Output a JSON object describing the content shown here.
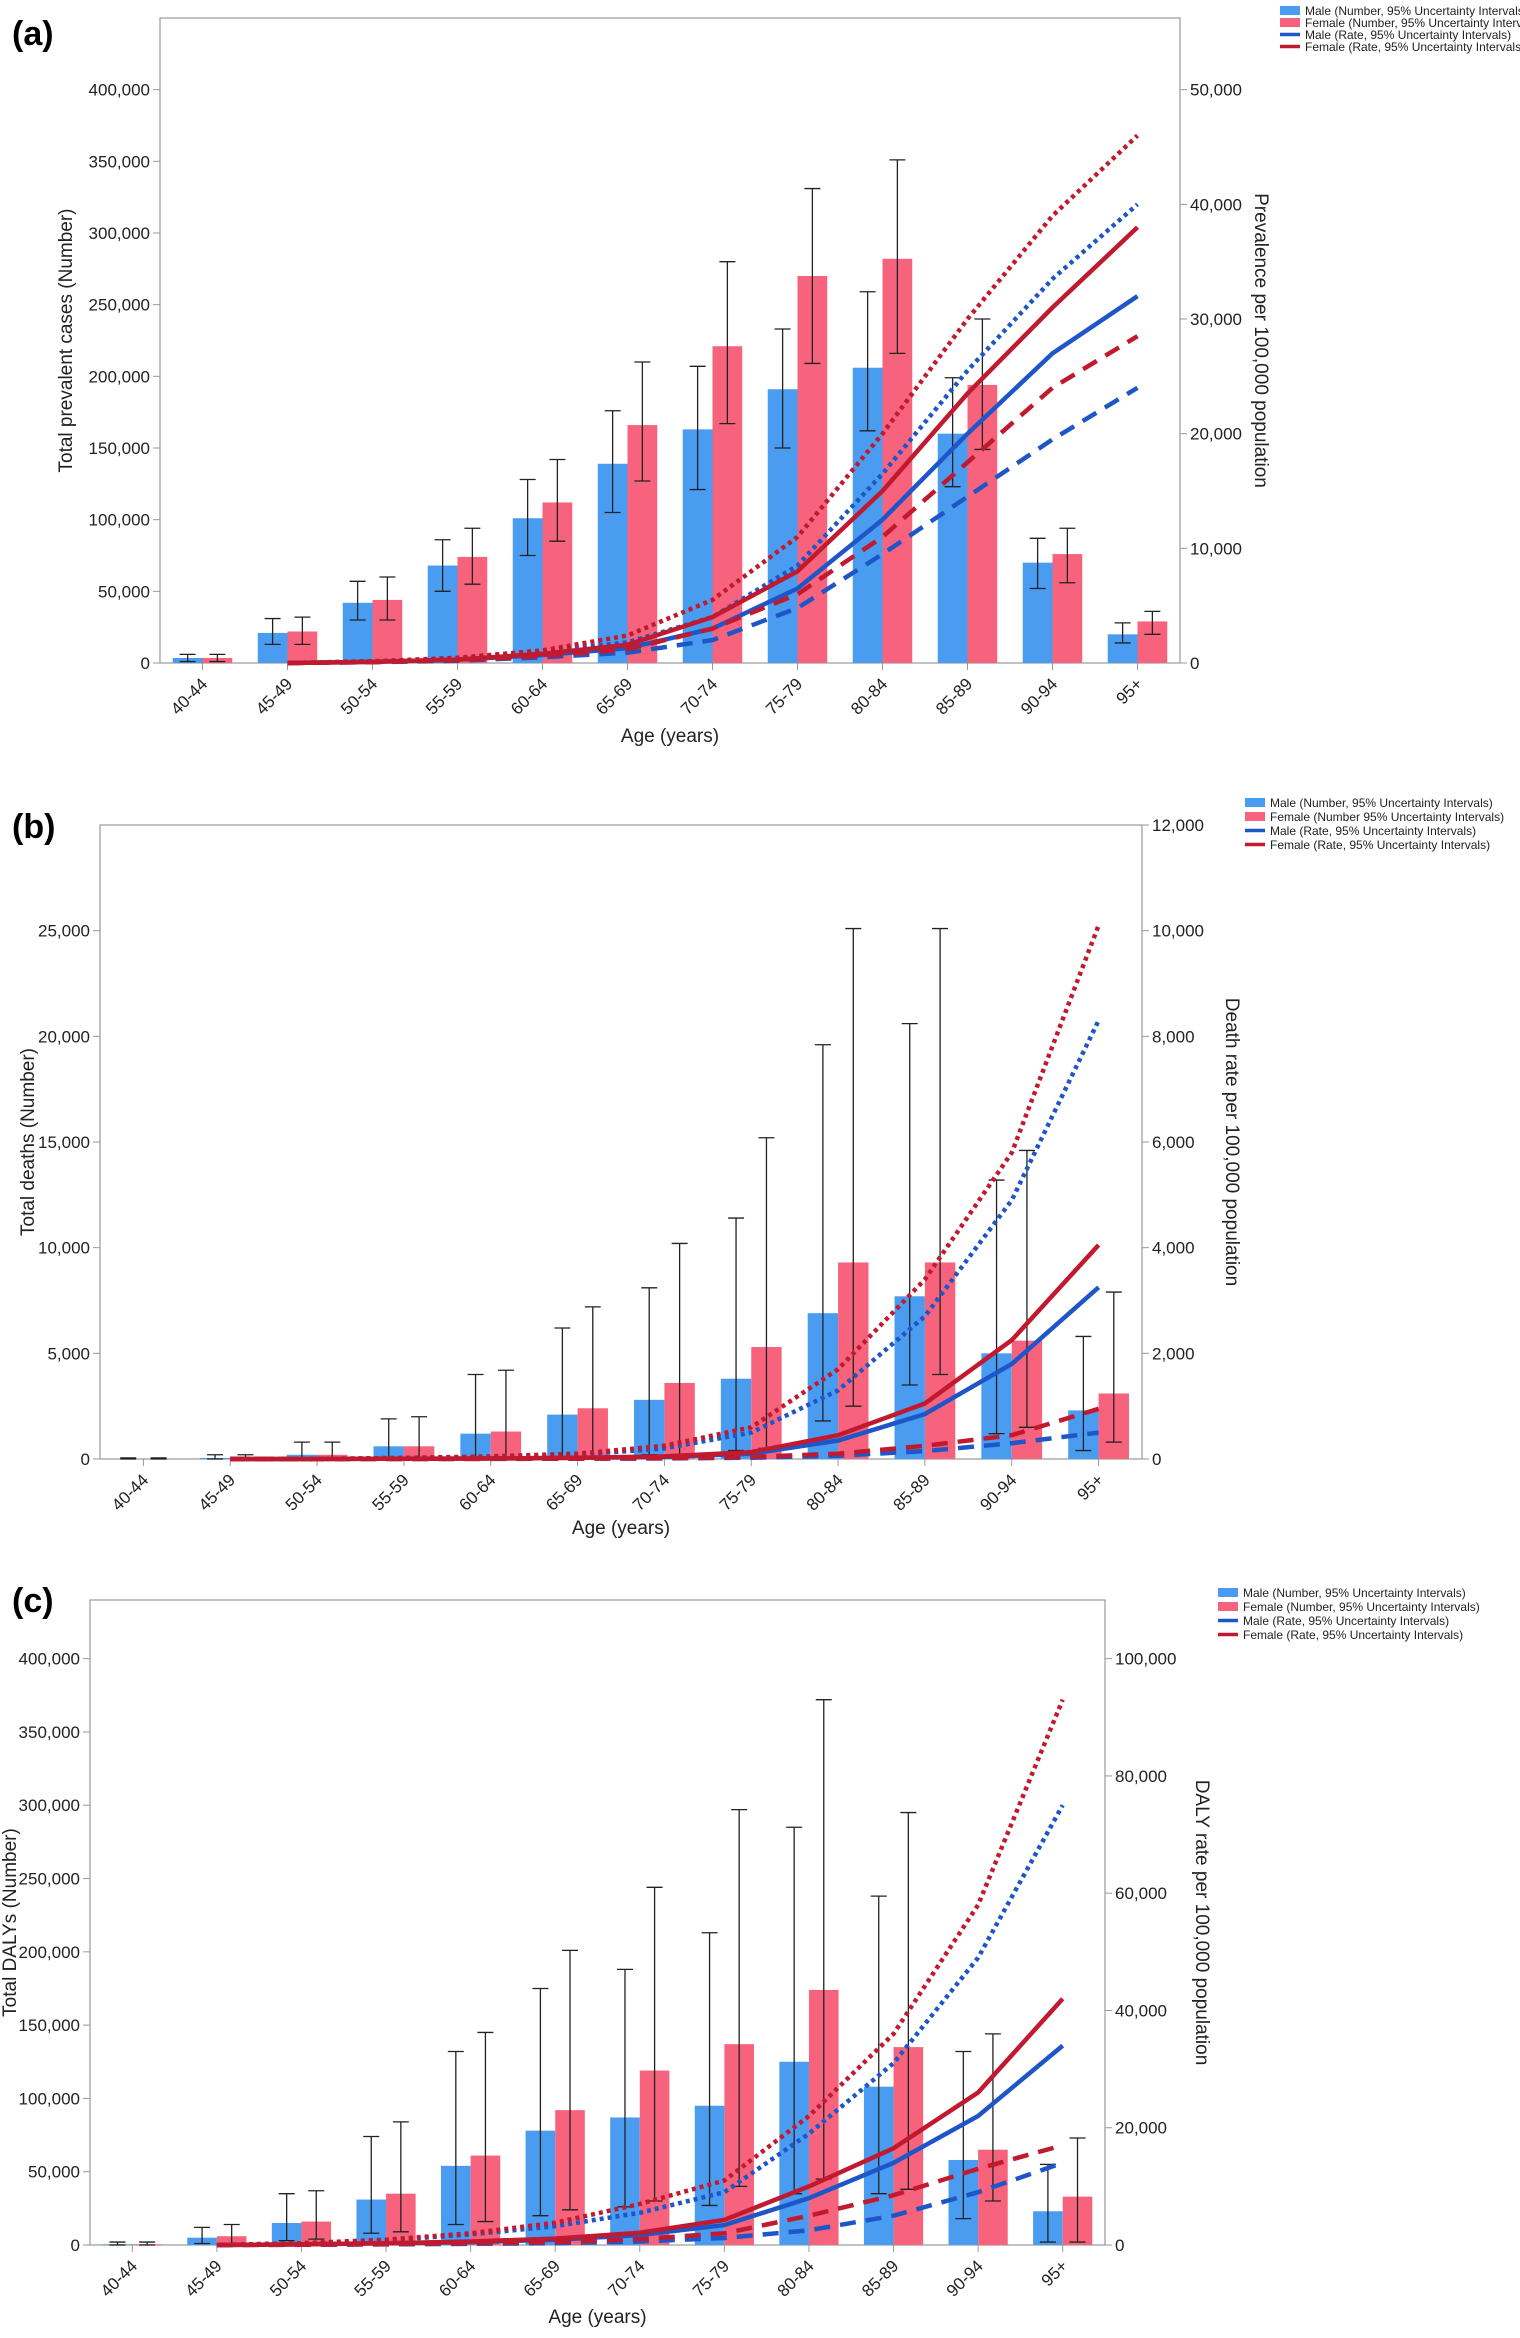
{
  "colors": {
    "male_bar": "#4a9cf0",
    "female_bar": "#f7637c",
    "male_line": "#1e56c8",
    "female_line": "#c11a2e",
    "axis": "#999999",
    "error_bar": "#222222"
  },
  "chart_data": [
    {
      "panel": "(a)",
      "type": "bar+line",
      "categories": [
        "40-44",
        "45-49",
        "50-54",
        "55-59",
        "60-64",
        "65-69",
        "70-74",
        "75-79",
        "80-84",
        "85-89",
        "90-94",
        "95+"
      ],
      "xlabel": "Age (years)",
      "ylabel": "Total prevalent cases (Number)",
      "y2label": "Prevalence per 100,000 population",
      "ylim": [
        0,
        450000
      ],
      "y2lim": [
        0,
        56250
      ],
      "yticks": [
        0,
        50000,
        100000,
        150000,
        200000,
        250000,
        300000,
        350000,
        400000
      ],
      "yticklabels": [
        "0",
        "50,000",
        "100,000",
        "150,000",
        "200,000",
        "250,000",
        "300,000",
        "350,000",
        "400,000"
      ],
      "y2ticks": [
        0,
        10000,
        20000,
        30000,
        40000,
        50000
      ],
      "y2ticklabels": [
        "0",
        "10,000",
        "20,000",
        "30,000",
        "40,000",
        "50,000"
      ],
      "legend": [
        "Male (Number, 95% Uncertainty Intervals)",
        "Female (Number, 95% Uncertainty Intervals)",
        "Male (Rate, 95% Uncertainty Intervals)",
        "Female (Rate, 95% Uncertainty Intervals)"
      ],
      "bars": {
        "male": {
          "values": [
            3500,
            21000,
            42000,
            68000,
            101000,
            139000,
            163000,
            191000,
            206000,
            160000,
            70000,
            20000
          ],
          "lower": [
            1000,
            13000,
            30000,
            50000,
            75000,
            105000,
            121000,
            150000,
            162000,
            123000,
            52000,
            14000
          ],
          "upper": [
            6000,
            31000,
            57000,
            86000,
            128000,
            176000,
            207000,
            233000,
            259000,
            199000,
            87000,
            28000
          ]
        },
        "female": {
          "values": [
            3500,
            22000,
            44000,
            74000,
            112000,
            166000,
            221000,
            270000,
            282000,
            194000,
            76000,
            29000
          ],
          "lower": [
            1000,
            13000,
            30000,
            55000,
            85000,
            127000,
            167000,
            209000,
            216000,
            149000,
            56000,
            20000
          ],
          "upper": [
            6000,
            32000,
            60000,
            94000,
            142000,
            210000,
            280000,
            331000,
            351000,
            240000,
            94000,
            36000
          ]
        }
      },
      "rate_lines": {
        "male": {
          "values": [
            0,
            0,
            100,
            300,
            700,
            1300,
            3000,
            6500,
            12500,
            20000,
            27000,
            32000
          ],
          "lower": [
            0,
            0,
            70,
            200,
            500,
            900,
            2000,
            4800,
            9500,
            14500,
            19500,
            24000
          ],
          "upper": [
            0,
            0,
            150,
            400,
            1000,
            1800,
            4000,
            8500,
            16500,
            25500,
            33500,
            40000
          ]
        },
        "female": {
          "values": [
            0,
            0,
            100,
            300,
            800,
            1600,
            4000,
            8000,
            15000,
            23500,
            31000,
            38000
          ],
          "lower": [
            0,
            0,
            80,
            250,
            600,
            1200,
            3000,
            6000,
            11000,
            17500,
            24000,
            28500
          ],
          "upper": [
            0,
            0,
            150,
            450,
            1100,
            2400,
            5500,
            11000,
            20000,
            30000,
            39000,
            46000
          ]
        }
      }
    },
    {
      "panel": "(b)",
      "type": "bar+line",
      "categories": [
        "40-44",
        "45-49",
        "50-54",
        "55-59",
        "60-64",
        "65-69",
        "70-74",
        "75-79",
        "80-84",
        "85-89",
        "90-94",
        "95+"
      ],
      "xlabel": "Age (years)",
      "ylabel": "Total deaths (Number)",
      "y2label": "Death rate per 100,000 population",
      "ylim": [
        0,
        30000
      ],
      "y2lim": [
        0,
        12000
      ],
      "yticks": [
        0,
        5000,
        10000,
        15000,
        20000,
        25000
      ],
      "yticklabels": [
        "0",
        "5,000",
        "10,000",
        "15,000",
        "20,000",
        "25,000"
      ],
      "y2ticks": [
        0,
        2000,
        4000,
        6000,
        8000,
        10000,
        12000
      ],
      "y2ticklabels": [
        "0",
        "2,000",
        "4,000",
        "6,000",
        "8,000",
        "10,000",
        "12,000"
      ],
      "legend": [
        "Male (Number, 95% Uncertainty Intervals)",
        "Female (Number 95% Uncertainty Intervals)",
        "Male (Rate, 95% Uncertainty Intervals)",
        "Female (Rate, 95% Uncertainty Intervals)"
      ],
      "bars": {
        "male": {
          "values": [
            10,
            50,
            200,
            600,
            1200,
            2100,
            2800,
            3800,
            6900,
            7700,
            5000,
            2300
          ],
          "lower": [
            0,
            0,
            0,
            0,
            50,
            100,
            200,
            400,
            1800,
            3500,
            1200,
            400
          ],
          "upper": [
            50,
            200,
            800,
            1900,
            4000,
            6200,
            8100,
            11400,
            19600,
            20600,
            13200,
            5800
          ]
        },
        "female": {
          "values": [
            10,
            50,
            200,
            600,
            1300,
            2400,
            3600,
            5300,
            9300,
            9300,
            5600,
            3100
          ],
          "lower": [
            0,
            0,
            0,
            0,
            50,
            100,
            200,
            500,
            2500,
            4000,
            1500,
            800
          ],
          "upper": [
            50,
            200,
            800,
            2000,
            4200,
            7200,
            10200,
            15200,
            25100,
            25100,
            14600,
            7900
          ]
        }
      },
      "rate_lines": {
        "male": {
          "values": [
            0,
            0,
            0,
            5,
            10,
            20,
            40,
            100,
            350,
            850,
            1800,
            3250
          ],
          "lower": [
            0,
            0,
            0,
            0,
            2,
            5,
            10,
            25,
            60,
            150,
            300,
            500
          ],
          "upper": [
            0,
            0,
            0,
            20,
            40,
            80,
            200,
            500,
            1300,
            2700,
            4900,
            8300
          ]
        },
        "female": {
          "values": [
            0,
            0,
            0,
            5,
            10,
            25,
            50,
            130,
            450,
            1050,
            2250,
            4050
          ],
          "lower": [
            0,
            0,
            0,
            0,
            3,
            8,
            15,
            40,
            100,
            250,
            450,
            950
          ],
          "upper": [
            0,
            0,
            0,
            20,
            50,
            100,
            250,
            600,
            1700,
            3400,
            5800,
            10100
          ]
        }
      }
    },
    {
      "panel": "(c)",
      "type": "bar+line",
      "categories": [
        "40-44",
        "45-49",
        "50-54",
        "55-59",
        "60-64",
        "65-69",
        "70-74",
        "75-79",
        "80-84",
        "85-89",
        "90-94",
        "95+"
      ],
      "xlabel": "Age (years)",
      "ylabel": "Total DALYs (Number)",
      "y2label": "DALY rate per 100,000 population",
      "ylim": [
        0,
        440000
      ],
      "y2lim": [
        0,
        110000
      ],
      "yticks": [
        0,
        50000,
        100000,
        150000,
        200000,
        250000,
        300000,
        350000,
        400000
      ],
      "yticklabels": [
        "0",
        "50,000",
        "100,000",
        "150,000",
        "200,000",
        "250,000",
        "300,000",
        "350,000",
        "400,000"
      ],
      "y2ticks": [
        0,
        20000,
        40000,
        60000,
        80000,
        100000
      ],
      "y2ticklabels": [
        "0",
        "20,000",
        "40,000",
        "60,000",
        "80,000",
        "100,000"
      ],
      "legend": [
        "Male (Number, 95% Uncertainty Intervals)",
        "Female (Number, 95% Uncertainty Intervals)",
        "Male (Rate, 95% Uncertainty Intervals)",
        "Female (Rate, 95% Uncertainty Intervals)"
      ],
      "bars": {
        "male": {
          "values": [
            500,
            5000,
            15000,
            31000,
            54000,
            78000,
            87000,
            95000,
            125000,
            108000,
            58000,
            23000
          ],
          "lower": [
            0,
            1000,
            3000,
            8000,
            14000,
            20000,
            26000,
            27000,
            35000,
            35000,
            18000,
            2000
          ],
          "upper": [
            2000,
            12000,
            35000,
            74000,
            132000,
            175000,
            188000,
            213000,
            285000,
            238000,
            132000,
            55000
          ]
        },
        "female": {
          "values": [
            500,
            6000,
            16000,
            35000,
            61000,
            92000,
            119000,
            137000,
            174000,
            135000,
            65000,
            33000
          ],
          "lower": [
            0,
            1000,
            4000,
            9000,
            16000,
            24000,
            30000,
            40000,
            45000,
            38000,
            30000,
            2000
          ],
          "upper": [
            2000,
            14000,
            37000,
            84000,
            145000,
            201000,
            244000,
            297000,
            372000,
            295000,
            144000,
            73000
          ]
        }
      },
      "rate_lines": {
        "male": {
          "values": [
            0,
            0,
            100,
            300,
            500,
            900,
            1700,
            3400,
            8000,
            14000,
            22000,
            34000
          ],
          "lower": [
            0,
            0,
            30,
            100,
            200,
            300,
            600,
            1200,
            2500,
            5000,
            9000,
            14000
          ],
          "upper": [
            0,
            0,
            300,
            800,
            1800,
            3200,
            5500,
            9000,
            19000,
            31000,
            49000,
            75000
          ]
        },
        "female": {
          "values": [
            0,
            0,
            100,
            300,
            600,
            1100,
            2100,
            4300,
            10000,
            16500,
            26000,
            42000
          ],
          "lower": [
            0,
            0,
            50,
            150,
            300,
            500,
            1000,
            2000,
            5000,
            8500,
            13000,
            17000
          ],
          "upper": [
            0,
            0,
            300,
            900,
            2000,
            3800,
            7000,
            11000,
            22000,
            36000,
            58000,
            93000
          ]
        }
      }
    }
  ]
}
